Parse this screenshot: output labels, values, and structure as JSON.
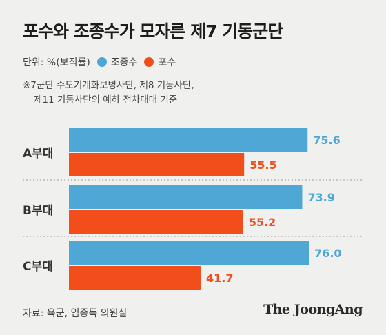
{
  "title": "포수와 조종수가 모자른 제7 기동군단",
  "unit_label": "단위: %(보직률)",
  "note_line1": "※7군단 수도기계화보병사단, 제8 기동사단,",
  "note_line2": "제11 기동사단의 예하 전차대대 기준",
  "source": "자료: 육군, 임종득 의원실",
  "brand": "The JoongAng",
  "colors": {
    "driver": "#4ea7d4",
    "gunner": "#f14e1c"
  },
  "chart_data": {
    "type": "bar",
    "orientation": "horizontal",
    "categories": [
      "A부대",
      "B부대",
      "C부대"
    ],
    "series": [
      {
        "name": "조종수",
        "values": [
          75.6,
          73.9,
          76.0
        ]
      },
      {
        "name": "포수",
        "values": [
          55.5,
          55.2,
          41.7
        ]
      }
    ],
    "xlim": [
      0,
      100
    ],
    "grid": false,
    "legend_position": "top-left"
  }
}
